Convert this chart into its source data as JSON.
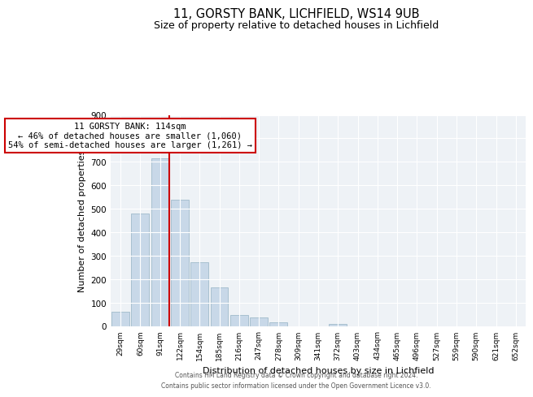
{
  "title": "11, GORSTY BANK, LICHFIELD, WS14 9UB",
  "subtitle": "Size of property relative to detached houses in Lichfield",
  "xlabel": "Distribution of detached houses by size in Lichfield",
  "ylabel": "Number of detached properties",
  "bar_labels": [
    "29sqm",
    "60sqm",
    "91sqm",
    "122sqm",
    "154sqm",
    "185sqm",
    "216sqm",
    "247sqm",
    "278sqm",
    "309sqm",
    "341sqm",
    "372sqm",
    "403sqm",
    "434sqm",
    "465sqm",
    "496sqm",
    "527sqm",
    "559sqm",
    "590sqm",
    "621sqm",
    "652sqm"
  ],
  "bar_values": [
    60,
    478,
    714,
    537,
    272,
    163,
    48,
    35,
    14,
    0,
    0,
    7,
    0,
    0,
    0,
    0,
    0,
    0,
    0,
    0,
    0
  ],
  "bar_color": "#c8d8e8",
  "bar_edge_color": "#a8c0d0",
  "marker_line_color": "#cc0000",
  "annotation_line1": "11 GORSTY BANK: 114sqm",
  "annotation_line2": "← 46% of detached houses are smaller (1,060)",
  "annotation_line3": "54% of semi-detached houses are larger (1,261) →",
  "annotation_box_color": "#ffffff",
  "annotation_box_edge": "#cc0000",
  "ylim": [
    0,
    900
  ],
  "yticks": [
    0,
    100,
    200,
    300,
    400,
    500,
    600,
    700,
    800,
    900
  ],
  "footer_line1": "Contains HM Land Registry data © Crown copyright and database right 2024.",
  "footer_line2": "Contains public sector information licensed under the Open Government Licence v3.0.",
  "bg_color": "#ffffff",
  "plot_bg_color": "#eef2f6"
}
